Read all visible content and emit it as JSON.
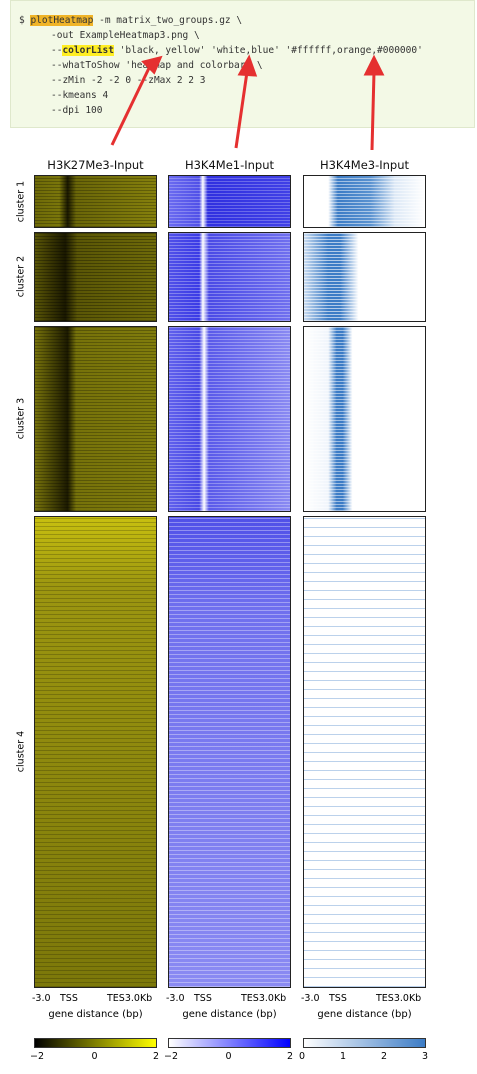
{
  "code": [
    {
      "pre": "$ ",
      "hl": "plotHeatmap",
      "post": " -m matrix_two_groups.gz \\"
    },
    {
      "text": "-out ExampleHeatmap3.png \\"
    },
    {
      "pre": "--",
      "hl": "colorList",
      "post": " 'black, yellow' 'white,blue' '#ffffff,orange,#000000'"
    },
    {
      "text": "--whatToShow 'heatmap and colorbar' \\"
    },
    {
      "text": "--zMin -2 -2 0 --zMax 2 2 3"
    },
    {
      "text": "--kmeans 4"
    },
    {
      "text": "--dpi 100"
    }
  ],
  "figure": {
    "columns": [
      {
        "title": "H3K27Me3-Input",
        "colorbar_ticks": [
          "−2",
          "0",
          "2"
        ]
      },
      {
        "title": "H3K4Me1-Input",
        "colorbar_ticks": [
          "−2",
          "0",
          "2"
        ]
      },
      {
        "title": "H3K4Me3-Input",
        "colorbar_ticks": [
          "0",
          "1",
          "2",
          "3"
        ]
      }
    ],
    "clusters": [
      "cluster 1",
      "cluster 2",
      "cluster 3",
      "cluster 4"
    ],
    "xticks": [
      "-3.0",
      "TSS",
      "TES3.0Kb"
    ],
    "xlabel": "gene distance (bp)"
  }
}
